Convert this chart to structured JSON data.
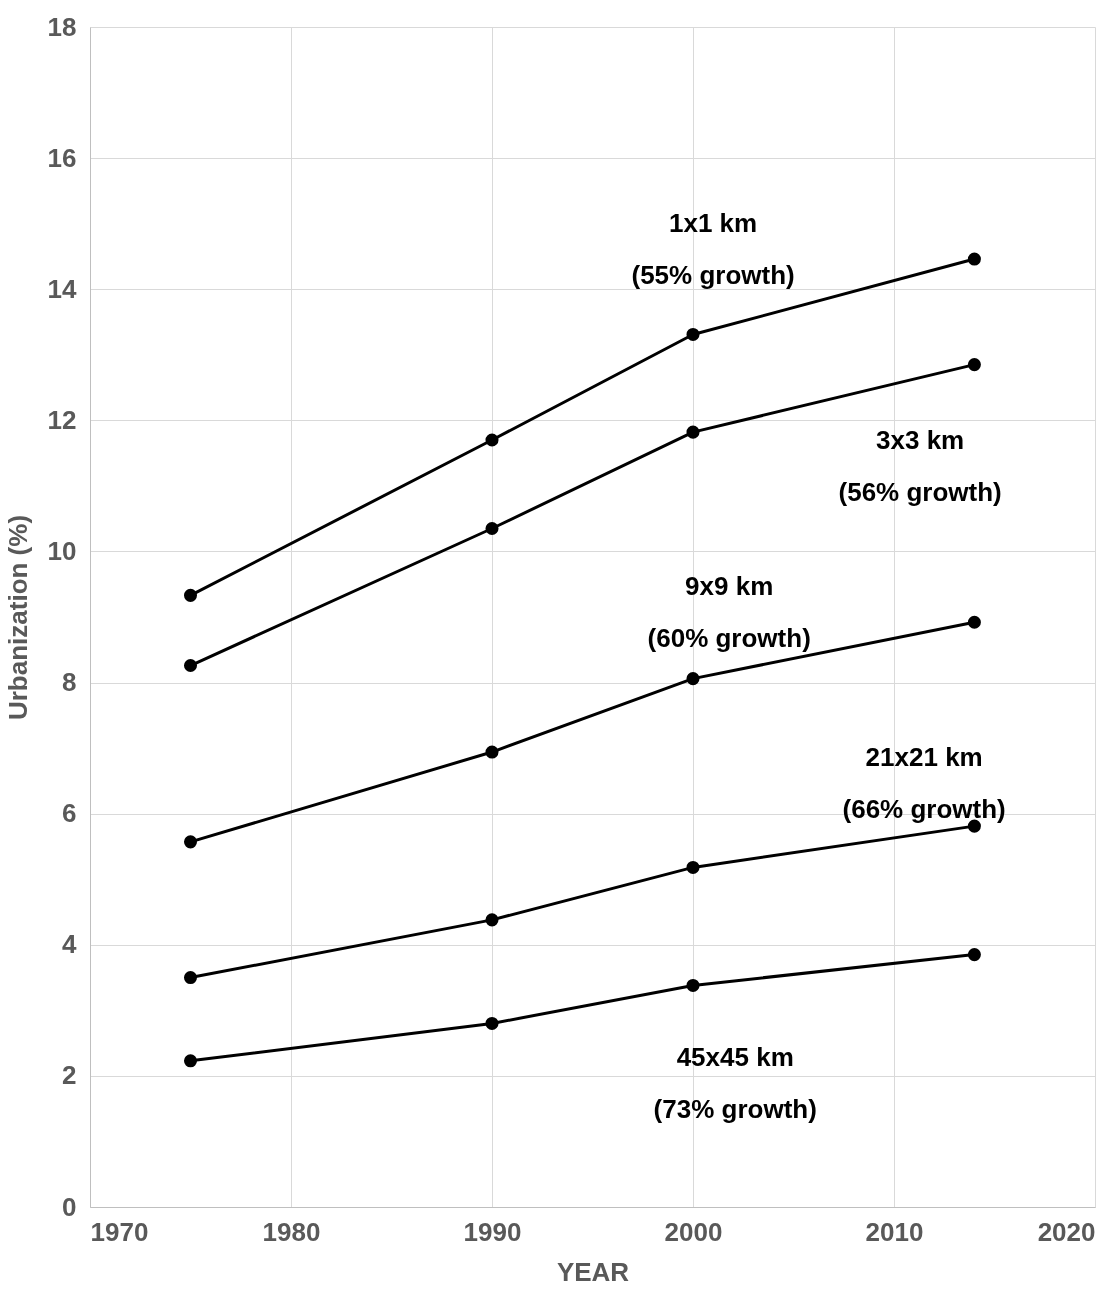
{
  "chart_data": {
    "type": "line",
    "xlabel": "YEAR",
    "ylabel": "Urbanization (%)",
    "x": [
      1975,
      1990,
      2000,
      2014
    ],
    "series": [
      {
        "name": "1x1 km (55% growth)",
        "color": "#000000",
        "values": [
          9.33,
          11.7,
          13.31,
          14.46
        ]
      },
      {
        "name": "3x3 km (56% growth)",
        "color": "#000000",
        "values": [
          8.26,
          10.35,
          11.82,
          12.85
        ]
      },
      {
        "name": "9x9 km (60% growth)",
        "color": "#000000",
        "values": [
          5.57,
          6.94,
          8.06,
          8.92
        ]
      },
      {
        "name": "21x21 km (66% growth)",
        "color": "#000000",
        "values": [
          3.5,
          4.38,
          5.18,
          5.81
        ]
      },
      {
        "name": "45x45 km (73% growth)",
        "color": "#000000",
        "values": [
          2.23,
          2.8,
          3.38,
          3.85
        ]
      }
    ],
    "xlim": [
      1970,
      2020
    ],
    "xticks": [
      1970,
      1980,
      1990,
      2000,
      2010,
      2020
    ],
    "ylim": [
      0,
      18
    ],
    "yticks": [
      0,
      2,
      4,
      6,
      8,
      10,
      12,
      14,
      16,
      18
    ],
    "grid": true,
    "marker": "circle",
    "line_style": "solid",
    "legend": false
  }
}
